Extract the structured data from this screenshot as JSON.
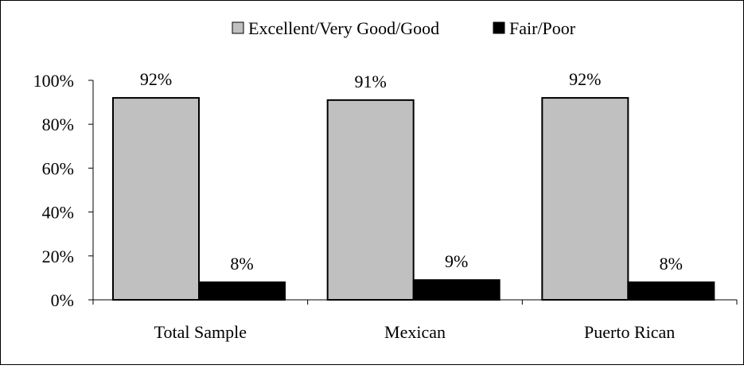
{
  "chart_data": {
    "type": "bar",
    "title": "",
    "xlabel": "",
    "ylabel": "",
    "categories": [
      "Total Sample",
      "Mexican",
      "Puerto Rican"
    ],
    "series": [
      {
        "name": "Excellent/Very Good/Good",
        "values": [
          92,
          91,
          92
        ],
        "labels": [
          "92%",
          "91%",
          "92%"
        ],
        "color": "#c0c0c0"
      },
      {
        "name": "Fair/Poor",
        "values": [
          8,
          9,
          8
        ],
        "labels": [
          "8%",
          "9%",
          "8%"
        ],
        "color": "#000000"
      }
    ],
    "ylim": [
      0,
      100
    ],
    "yticks": [
      "0%",
      "20%",
      "40%",
      "60%",
      "80%",
      "100%"
    ],
    "ytick_values": [
      0,
      20,
      40,
      60,
      80,
      100
    ],
    "grid": false,
    "legend_position": "top-center"
  }
}
